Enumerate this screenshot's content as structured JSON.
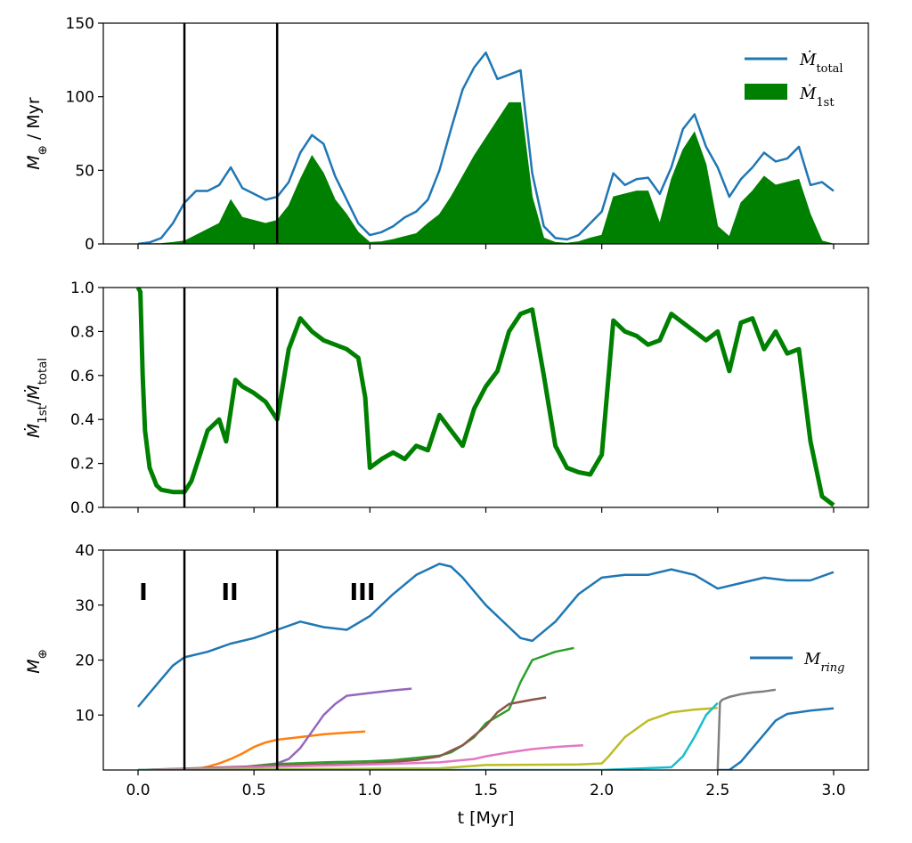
{
  "chart_data": [
    {
      "type": "area",
      "panel": "top",
      "ylabel": "M_⊕ / Myr",
      "xlim": [
        0,
        3.0
      ],
      "ylim": [
        0,
        150
      ],
      "yticks": [
        "0",
        "50",
        "100",
        "150"
      ],
      "x_ticks_labeled": false,
      "vlines": [
        0.2,
        0.6
      ],
      "legend_position": "top-right",
      "series": [
        {
          "name": "Ṁtotal",
          "style": "line",
          "color": "#1f77b4",
          "x": [
            0,
            0.05,
            0.1,
            0.15,
            0.2,
            0.25,
            0.3,
            0.35,
            0.4,
            0.45,
            0.5,
            0.55,
            0.6,
            0.65,
            0.7,
            0.75,
            0.8,
            0.85,
            0.9,
            0.95,
            1.0,
            1.05,
            1.1,
            1.15,
            1.2,
            1.25,
            1.3,
            1.35,
            1.4,
            1.45,
            1.5,
            1.55,
            1.6,
            1.65,
            1.7,
            1.75,
            1.8,
            1.85,
            1.9,
            1.95,
            2.0,
            2.05,
            2.1,
            2.15,
            2.2,
            2.25,
            2.3,
            2.35,
            2.4,
            2.45,
            2.5,
            2.55,
            2.6,
            2.65,
            2.7,
            2.75,
            2.8,
            2.85,
            2.9,
            2.95,
            3.0
          ],
          "y": [
            0,
            1,
            4,
            14,
            28,
            36,
            36,
            40,
            52,
            38,
            34,
            30,
            32,
            42,
            62,
            74,
            68,
            46,
            30,
            14,
            6,
            8,
            12,
            18,
            22,
            30,
            50,
            78,
            105,
            120,
            130,
            112,
            115,
            118,
            48,
            12,
            4,
            3,
            6,
            14,
            22,
            48,
            40,
            44,
            45,
            34,
            52,
            78,
            88,
            66,
            52,
            32,
            44,
            52,
            62,
            56,
            58,
            66,
            40,
            42,
            36
          ]
        },
        {
          "name": "Ṁ1st",
          "style": "fill",
          "color": "#008000",
          "x": [
            0,
            0.05,
            0.1,
            0.15,
            0.2,
            0.25,
            0.3,
            0.35,
            0.4,
            0.45,
            0.5,
            0.55,
            0.6,
            0.65,
            0.7,
            0.75,
            0.8,
            0.85,
            0.9,
            0.95,
            1.0,
            1.05,
            1.1,
            1.15,
            1.2,
            1.25,
            1.3,
            1.35,
            1.4,
            1.45,
            1.5,
            1.55,
            1.6,
            1.65,
            1.7,
            1.75,
            1.8,
            1.85,
            1.9,
            1.95,
            2.0,
            2.05,
            2.1,
            2.15,
            2.2,
            2.25,
            2.3,
            2.35,
            2.4,
            2.45,
            2.5,
            2.55,
            2.6,
            2.65,
            2.7,
            2.75,
            2.8,
            2.85,
            2.9,
            2.95,
            3.0
          ],
          "y": [
            0,
            0.1,
            0.3,
            1,
            2,
            6,
            10,
            14,
            30,
            18,
            16,
            14,
            16,
            26,
            44,
            60,
            48,
            30,
            20,
            8,
            1,
            1.5,
            3,
            5,
            7,
            14,
            20,
            32,
            46,
            60,
            72,
            84,
            96,
            96,
            32,
            4,
            1,
            0.5,
            1.5,
            4,
            6,
            32,
            34,
            36,
            36,
            14,
            44,
            64,
            76,
            54,
            12,
            5,
            28,
            36,
            46,
            40,
            42,
            44,
            20,
            2,
            0
          ]
        }
      ]
    },
    {
      "type": "line",
      "panel": "middle",
      "ylabel": "Ṁ1st/Ṁtotal",
      "xlim": [
        0,
        3.0
      ],
      "ylim": [
        0,
        1.0
      ],
      "yticks": [
        "0.0",
        "0.2",
        "0.4",
        "0.6",
        "0.8",
        "1.0"
      ],
      "x_ticks_labeled": false,
      "vlines": [
        0.2,
        0.6
      ],
      "series": [
        {
          "color": "#008000",
          "x": [
            0,
            0.01,
            0.02,
            0.03,
            0.05,
            0.08,
            0.1,
            0.15,
            0.2,
            0.23,
            0.27,
            0.3,
            0.35,
            0.38,
            0.42,
            0.45,
            0.5,
            0.55,
            0.6,
            0.65,
            0.7,
            0.75,
            0.8,
            0.85,
            0.9,
            0.95,
            0.98,
            1.0,
            1.05,
            1.1,
            1.15,
            1.2,
            1.25,
            1.3,
            1.35,
            1.4,
            1.45,
            1.5,
            1.55,
            1.6,
            1.65,
            1.7,
            1.75,
            1.8,
            1.85,
            1.9,
            1.95,
            2.0,
            2.05,
            2.1,
            2.15,
            2.2,
            2.25,
            2.3,
            2.35,
            2.4,
            2.45,
            2.5,
            2.55,
            2.6,
            2.65,
            2.7,
            2.75,
            2.8,
            2.85,
            2.9,
            2.95,
            3.0
          ],
          "y": [
            1.0,
            0.98,
            0.6,
            0.35,
            0.18,
            0.1,
            0.08,
            0.07,
            0.07,
            0.12,
            0.25,
            0.35,
            0.4,
            0.3,
            0.58,
            0.55,
            0.52,
            0.48,
            0.4,
            0.72,
            0.86,
            0.8,
            0.76,
            0.74,
            0.72,
            0.68,
            0.5,
            0.18,
            0.22,
            0.25,
            0.22,
            0.28,
            0.26,
            0.42,
            0.35,
            0.28,
            0.45,
            0.55,
            0.62,
            0.8,
            0.88,
            0.9,
            0.6,
            0.28,
            0.18,
            0.16,
            0.15,
            0.24,
            0.85,
            0.8,
            0.78,
            0.74,
            0.76,
            0.88,
            0.84,
            0.8,
            0.76,
            0.8,
            0.62,
            0.84,
            0.86,
            0.72,
            0.8,
            0.7,
            0.72,
            0.3,
            0.05,
            0.01
          ]
        }
      ]
    },
    {
      "type": "line",
      "panel": "bottom",
      "ylabel": "M_⊕",
      "xlabel": "t [Myr]",
      "xlim": [
        0,
        3.0
      ],
      "ylim": [
        0,
        40
      ],
      "yticks": [
        "10",
        "20",
        "30",
        "40"
      ],
      "xticks": [
        "0.0",
        "0.5",
        "1.0",
        "1.5",
        "2.0",
        "2.5",
        "3.0"
      ],
      "vlines": [
        0.2,
        0.6
      ],
      "annotations": [
        "I",
        "II",
        "III"
      ],
      "legend_position": "right",
      "series": [
        {
          "name": "M_ring",
          "color": "#1f77b4",
          "x": [
            0,
            0.05,
            0.1,
            0.15,
            0.2,
            0.3,
            0.4,
            0.5,
            0.6,
            0.7,
            0.75,
            0.8,
            0.9,
            1.0,
            1.1,
            1.2,
            1.3,
            1.35,
            1.4,
            1.5,
            1.6,
            1.65,
            1.7,
            1.8,
            1.9,
            2.0,
            2.1,
            2.2,
            2.3,
            2.4,
            2.5,
            2.6,
            2.7,
            2.8,
            2.9,
            3.0
          ],
          "y": [
            11.5,
            14,
            16.5,
            19,
            20.5,
            21.5,
            23,
            24,
            25.5,
            27,
            26.5,
            26,
            25.5,
            28,
            32,
            35.5,
            37.5,
            37,
            35,
            30,
            26,
            24,
            23.5,
            27,
            32,
            35,
            35.5,
            35.5,
            36.5,
            35.5,
            33,
            34,
            35,
            34.5,
            34.5,
            36
          ]
        },
        {
          "color": "#ff7f0e",
          "x": [
            0.27,
            0.3,
            0.35,
            0.4,
            0.45,
            0.5,
            0.55,
            0.6,
            0.7,
            0.8,
            0.9,
            0.98
          ],
          "y": [
            0.3,
            0.6,
            1.2,
            2,
            3,
            4.2,
            5,
            5.5,
            6,
            6.5,
            6.8,
            7
          ]
        },
        {
          "color": "#9467bd",
          "x": [
            0,
            0.4,
            0.6,
            0.65,
            0.7,
            0.75,
            0.8,
            0.85,
            0.9,
            1.0,
            1.1,
            1.18
          ],
          "y": [
            0,
            0.3,
            1.2,
            2,
            4,
            7,
            10,
            12,
            13.5,
            14,
            14.5,
            14.8
          ]
        },
        {
          "color": "#2ca02c",
          "x": [
            0,
            0.4,
            0.6,
            0.8,
            1.0,
            1.1,
            1.2,
            1.3,
            1.35,
            1.4,
            1.45,
            1.5,
            1.6,
            1.65,
            1.7,
            1.8,
            1.88
          ],
          "y": [
            0,
            0.3,
            1.1,
            1.4,
            1.6,
            1.8,
            2.2,
            2.6,
            3.2,
            4.5,
            6,
            8.5,
            11,
            16,
            20,
            21.5,
            22.2
          ]
        },
        {
          "color": "#8c564b",
          "x": [
            0,
            0.6,
            1.0,
            1.2,
            1.3,
            1.4,
            1.5,
            1.55,
            1.6,
            1.7,
            1.76
          ],
          "y": [
            0,
            0.8,
            1.2,
            1.8,
            2.5,
            4.5,
            8,
            10.5,
            12,
            12.8,
            13.2
          ]
        },
        {
          "color": "#e377c2",
          "x": [
            0,
            0.6,
            1.0,
            1.3,
            1.45,
            1.5,
            1.6,
            1.7,
            1.8,
            1.92
          ],
          "y": [
            0,
            0.6,
            1,
            1.4,
            2,
            2.5,
            3.2,
            3.8,
            4.2,
            4.5
          ]
        },
        {
          "color": "#bcbd22",
          "x": [
            0,
            1.3,
            1.4,
            1.5,
            1.9,
            2.0,
            2.03,
            2.1,
            2.2,
            2.3,
            2.4,
            2.5
          ],
          "y": [
            0,
            0.3,
            0.6,
            0.9,
            1,
            1.2,
            2.5,
            6,
            9,
            10.5,
            11,
            11.3
          ]
        },
        {
          "color": "#17becf",
          "x": [
            0,
            2.0,
            2.3,
            2.35,
            2.4,
            2.45,
            2.5
          ],
          "y": [
            0,
            0,
            0.5,
            2.5,
            6,
            10,
            12.2
          ]
        },
        {
          "color": "#7f7f7f",
          "x": [
            2.5,
            2.51,
            2.52,
            2.55,
            2.6,
            2.65,
            2.7,
            2.75
          ],
          "y": [
            0,
            12.3,
            12.8,
            13.3,
            13.8,
            14.1,
            14.3,
            14.6
          ]
        },
        {
          "color": "#1f77b4",
          "x": [
            2.5,
            2.55,
            2.6,
            2.65,
            2.7,
            2.75,
            2.8,
            2.9,
            3.0
          ],
          "y": [
            0,
            0,
            1.5,
            4,
            6.5,
            9,
            10.2,
            10.8,
            11.2
          ]
        }
      ]
    }
  ]
}
